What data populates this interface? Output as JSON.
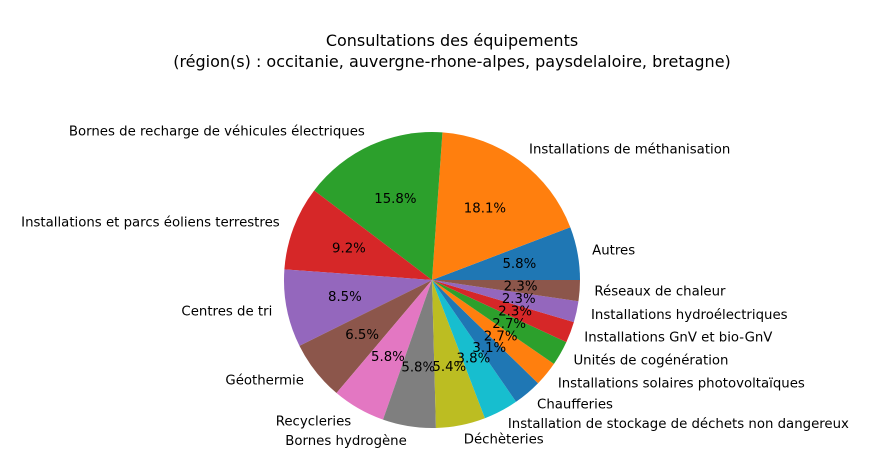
{
  "chart_data": {
    "type": "pie",
    "title": "Consultations des équipements",
    "subtitle": "(région(s) : occitanie, auvergne-rhone-alpes, paysdelaloire, bretagne)",
    "start_angle_deg": 0,
    "direction": "counterclockwise",
    "slices": [
      {
        "label": "Autres",
        "value": 5.8,
        "pct_label": "5.8%",
        "color": "#1f77b4"
      },
      {
        "label": "Installations de méthanisation",
        "value": 18.1,
        "pct_label": "18.1%",
        "color": "#ff7f0e"
      },
      {
        "label": "Bornes de recharge de véhicules électriques",
        "value": 15.8,
        "pct_label": "15.8%",
        "color": "#2ca02c"
      },
      {
        "label": "Installations et parcs éoliens terrestres",
        "value": 9.2,
        "pct_label": "9.2%",
        "color": "#d62728"
      },
      {
        "label": "Centres de tri",
        "value": 8.5,
        "pct_label": "8.5%",
        "color": "#9467bd"
      },
      {
        "label": "Géothermie",
        "value": 6.5,
        "pct_label": "6.5%",
        "color": "#8c564b"
      },
      {
        "label": "Recycleries",
        "value": 5.8,
        "pct_label": "5.8%",
        "color": "#e377c2"
      },
      {
        "label": "Bornes hydrogène",
        "value": 5.8,
        "pct_label": "5.8%",
        "color": "#7f7f7f"
      },
      {
        "label": "Déchèteries",
        "value": 5.4,
        "pct_label": "5.4%",
        "color": "#bcbd22"
      },
      {
        "label": "Installation de stockage de déchets non dangereux",
        "value": 3.8,
        "pct_label": "3.8%",
        "color": "#17becf"
      },
      {
        "label": "Chaufferies",
        "value": 3.1,
        "pct_label": "3.1%",
        "color": "#1f77b4"
      },
      {
        "label": "Installations solaires photovoltaïques",
        "value": 2.7,
        "pct_label": "2.7%",
        "color": "#ff7f0e"
      },
      {
        "label": "Unités de cogénération",
        "value": 2.7,
        "pct_label": "2.7%",
        "color": "#2ca02c"
      },
      {
        "label": "Installations GnV et bio-GnV",
        "value": 2.3,
        "pct_label": "2.3%",
        "color": "#d62728"
      },
      {
        "label": "Installations hydroélectriques",
        "value": 2.3,
        "pct_label": "2.3%",
        "color": "#9467bd"
      },
      {
        "label": "Réseaux de chaleur",
        "value": 2.3,
        "pct_label": "2.3%",
        "color": "#8c564b"
      }
    ]
  }
}
